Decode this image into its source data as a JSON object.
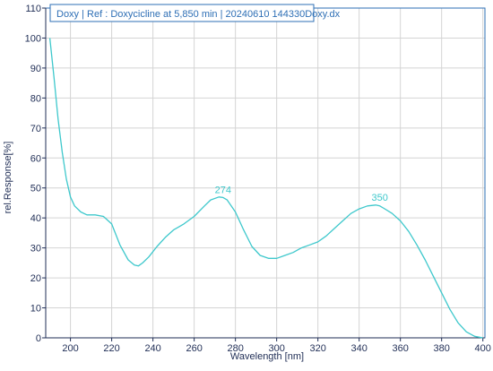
{
  "chart_data": {
    "type": "line",
    "title": "Doxy | Ref : Doxycicline at 5,850 min | 20240610 144330Doxy.dx",
    "xlabel": "Wavelength [nm]",
    "ylabel": "rel.Response[%]",
    "xlim": [
      188,
      401
    ],
    "ylim": [
      0,
      110
    ],
    "x_ticks": [
      200,
      220,
      240,
      260,
      280,
      300,
      320,
      340,
      360,
      380,
      400
    ],
    "y_ticks": [
      0,
      10,
      20,
      30,
      40,
      50,
      60,
      70,
      80,
      90,
      100,
      110
    ],
    "grid": true,
    "line_color": "#3ec8cc",
    "axis_color": "#1f2d55",
    "grid_color": "#d4d4d4",
    "frame_color": "#2e6fb5",
    "series": [
      {
        "x": [
          190,
          192,
          194,
          196,
          198,
          200,
          202,
          205,
          208,
          212,
          216,
          220,
          224,
          228,
          231,
          233,
          235,
          238,
          242,
          246,
          250,
          255,
          260,
          265,
          268,
          272,
          274,
          276,
          280,
          284,
          288,
          292,
          296,
          300,
          304,
          308,
          312,
          316,
          320,
          324,
          328,
          332,
          336,
          340,
          344,
          348,
          350,
          352,
          356,
          360,
          364,
          368,
          372,
          376,
          380,
          384,
          388,
          392,
          396,
          400
        ],
        "y": [
          100,
          87,
          73,
          62,
          53,
          47,
          44,
          42,
          41,
          41,
          40.5,
          38,
          31,
          26,
          24.3,
          24,
          25,
          27,
          30.5,
          33.5,
          36,
          38,
          40.5,
          44,
          46,
          47,
          46.8,
          46,
          42,
          36,
          30.5,
          27.5,
          26.5,
          26.5,
          27.5,
          28.5,
          30,
          31,
          32,
          34,
          36.5,
          39,
          41.5,
          43,
          44,
          44.3,
          44,
          43.2,
          41.5,
          39,
          35.5,
          31,
          26,
          20.5,
          15,
          9.5,
          5,
          2,
          0.5,
          0
        ]
      }
    ],
    "annotations": [
      {
        "label": "274",
        "x": 274,
        "y": 46.8
      },
      {
        "label": "350",
        "x": 350,
        "y": 44.3
      }
    ]
  }
}
